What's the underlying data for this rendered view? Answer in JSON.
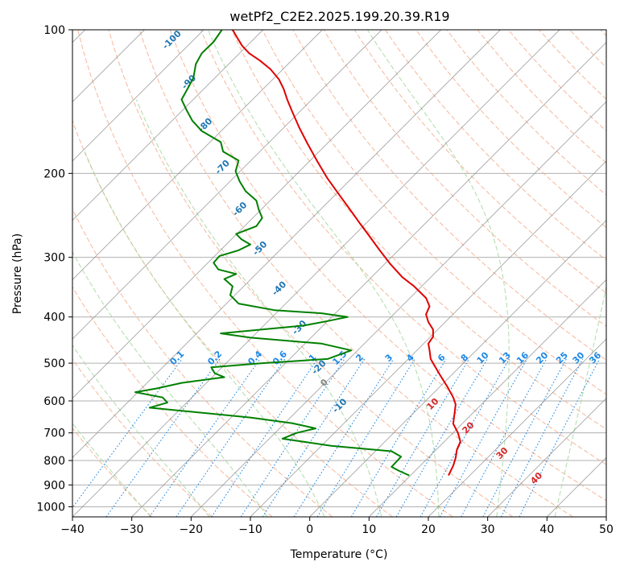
{
  "chart_data": {
    "type": "line",
    "title": "wetPf2_C2E2.2025.199.20.39.R19",
    "xlabel": "Temperature (°C)",
    "ylabel": "Pressure (hPa)",
    "xlim": [
      -40,
      50
    ],
    "ylim": [
      1050,
      100
    ],
    "y_scale": "log",
    "grid": true,
    "x_ticks": [
      -40,
      -30,
      -20,
      -10,
      0,
      10,
      20,
      30,
      40,
      50
    ],
    "y_ticks": [
      100,
      200,
      300,
      400,
      500,
      600,
      700,
      800,
      900,
      1000
    ],
    "x_tick_labels": [
      "−40",
      "−30",
      "−20",
      "−10",
      "0",
      "10",
      "20",
      "30",
      "40",
      "50"
    ],
    "y_tick_labels": [
      "100",
      "200",
      "300",
      "400",
      "500",
      "600",
      "700",
      "800",
      "900",
      "1000"
    ],
    "skew_isotherms": {
      "values": [
        -150,
        -140,
        -130,
        -120,
        -110,
        -100,
        -90,
        -80,
        -70,
        -60,
        -50,
        -40,
        -30,
        -20,
        -10,
        0,
        10,
        20,
        30,
        40,
        50
      ],
      "color": "#888888"
    },
    "dry_adiabats": {
      "values": [
        -30,
        -20,
        -10,
        0,
        10,
        20,
        30,
        40,
        50,
        60,
        70,
        80,
        90,
        100,
        110,
        120,
        130,
        140,
        150,
        160,
        170,
        180,
        190,
        200
      ],
      "color": "#f4a582"
    },
    "moist_adiabats": {
      "values": [
        -30,
        -20,
        -10,
        0,
        10,
        20,
        30,
        40
      ],
      "color": "#a6d8a0"
    },
    "mixing_ratio_lines": {
      "values": [
        0.1,
        0.2,
        0.4,
        0.6,
        1,
        1.5,
        2,
        3,
        4,
        6,
        8,
        10,
        13,
        16,
        20,
        25,
        30,
        36
      ],
      "labels": [
        "0.1",
        "0.2",
        "0.4",
        "0.6",
        "1",
        "1.5",
        "2",
        "3",
        "4",
        "6",
        "8",
        "10",
        "13",
        "16",
        "20",
        "25",
        "30",
        "36"
      ],
      "color": "#1e88e5"
    },
    "blue_isotherm_labels": [
      {
        "text": "-100",
        "t": -100
      },
      {
        "text": "-90",
        "t": -90
      },
      {
        "text": "-80",
        "t": -80
      },
      {
        "text": "-70",
        "t": -70
      },
      {
        "text": "-60",
        "t": -60
      },
      {
        "text": "-50",
        "t": -50
      },
      {
        "text": "-40",
        "t": -40
      },
      {
        "text": "-30",
        "t": -30
      },
      {
        "text": "-20",
        "t": -20
      },
      {
        "text": "-10",
        "t": -10
      }
    ],
    "label_colors": {
      "blue": "#1f77b4",
      "red": "#d62728",
      "gray": "#888888"
    },
    "red_isotherm_labels": [
      {
        "text": "10",
        "t": 10
      },
      {
        "text": "20",
        "t": 20
      },
      {
        "text": "30",
        "t": 30
      },
      {
        "text": "40",
        "t": 40
      }
    ],
    "zero_label": {
      "text": "0",
      "t": 0
    },
    "series": [
      {
        "color": "#e00000",
        "points": [
          [
            23.4,
            860
          ],
          [
            24.2,
            820
          ],
          [
            24.6,
            790
          ],
          [
            24.8,
            760
          ],
          [
            25.4,
            730
          ],
          [
            25.0,
            700
          ],
          [
            24.2,
            670
          ],
          [
            24.4,
            640
          ],
          [
            24.6,
            610
          ],
          [
            24.2,
            590
          ],
          [
            23.2,
            560
          ],
          [
            22.0,
            530
          ],
          [
            21.0,
            505
          ],
          [
            20.4,
            490
          ],
          [
            20.2,
            470
          ],
          [
            20.0,
            455
          ],
          [
            20.8,
            440
          ],
          [
            20.8,
            425
          ],
          [
            20.0,
            410
          ],
          [
            19.6,
            395
          ],
          [
            20.2,
            380
          ],
          [
            19.6,
            365
          ],
          [
            17.6,
            345
          ],
          [
            15.6,
            330
          ],
          [
            13.6,
            310
          ],
          [
            11.8,
            290
          ],
          [
            10.0,
            270
          ],
          [
            8.5,
            255
          ],
          [
            7.0,
            240
          ],
          [
            5.0,
            222
          ],
          [
            3.0,
            205
          ],
          [
            1.2,
            188
          ],
          [
            -0.4,
            173
          ],
          [
            -1.8,
            160
          ],
          [
            -3.0,
            148
          ],
          [
            -3.8,
            140
          ],
          [
            -4.4,
            133
          ],
          [
            -5.2,
            127
          ],
          [
            -6.6,
            121
          ],
          [
            -8.4,
            116
          ],
          [
            -10.2,
            112
          ],
          [
            -11.4,
            108
          ],
          [
            -12.2,
            104
          ],
          [
            -13.0,
            100
          ]
        ]
      },
      {
        "color": "#008000",
        "points": [
          [
            16.8,
            860
          ],
          [
            15.0,
            840
          ],
          [
            13.8,
            825
          ],
          [
            14.8,
            800
          ],
          [
            15.4,
            785
          ],
          [
            13.8,
            765
          ],
          [
            3.6,
            745
          ],
          [
            -4.6,
            720
          ],
          [
            -2.2,
            700
          ],
          [
            1.0,
            685
          ],
          [
            -3.0,
            668
          ],
          [
            -10.0,
            650
          ],
          [
            -20.0,
            632
          ],
          [
            -27.0,
            620
          ],
          [
            -24.0,
            605
          ],
          [
            -24.8,
            590
          ],
          [
            -29.4,
            575
          ],
          [
            -25.8,
            565
          ],
          [
            -21.6,
            550
          ],
          [
            -14.4,
            535
          ],
          [
            -16.0,
            525
          ],
          [
            -16.6,
            510
          ],
          [
            -8.0,
            500
          ],
          [
            3.0,
            490
          ],
          [
            7.0,
            470
          ],
          [
            2.0,
            455
          ],
          [
            -10.0,
            442
          ],
          [
            -15.0,
            433
          ],
          [
            -8.0,
            425
          ],
          [
            -1.0,
            417
          ],
          [
            3.0,
            408
          ],
          [
            6.4,
            400
          ],
          [
            2.0,
            393
          ],
          [
            -6.0,
            387
          ],
          [
            -12.0,
            375
          ],
          [
            -13.4,
            360
          ],
          [
            -13.0,
            345
          ],
          [
            -14.4,
            333
          ],
          [
            -12.4,
            325
          ],
          [
            -15.4,
            318
          ],
          [
            -16.2,
            308
          ],
          [
            -15.2,
            298
          ],
          [
            -12.0,
            290
          ],
          [
            -10.0,
            282
          ],
          [
            -11.5,
            275
          ],
          [
            -12.4,
            268
          ],
          [
            -9.0,
            258
          ],
          [
            -8.0,
            248
          ],
          [
            -8.6,
            238
          ],
          [
            -9.0,
            228
          ],
          [
            -10.8,
            218
          ],
          [
            -11.8,
            208
          ],
          [
            -12.5,
            198
          ],
          [
            -12.0,
            188
          ],
          [
            -14.6,
            180
          ],
          [
            -15.0,
            172
          ],
          [
            -18.2,
            163
          ],
          [
            -19.8,
            155
          ],
          [
            -20.8,
            147
          ],
          [
            -21.6,
            140
          ],
          [
            -20.6,
            133
          ],
          [
            -19.6,
            126
          ],
          [
            -19.2,
            118
          ],
          [
            -18.2,
            112
          ],
          [
            -16.2,
            106
          ],
          [
            -14.8,
            100
          ]
        ]
      }
    ]
  }
}
